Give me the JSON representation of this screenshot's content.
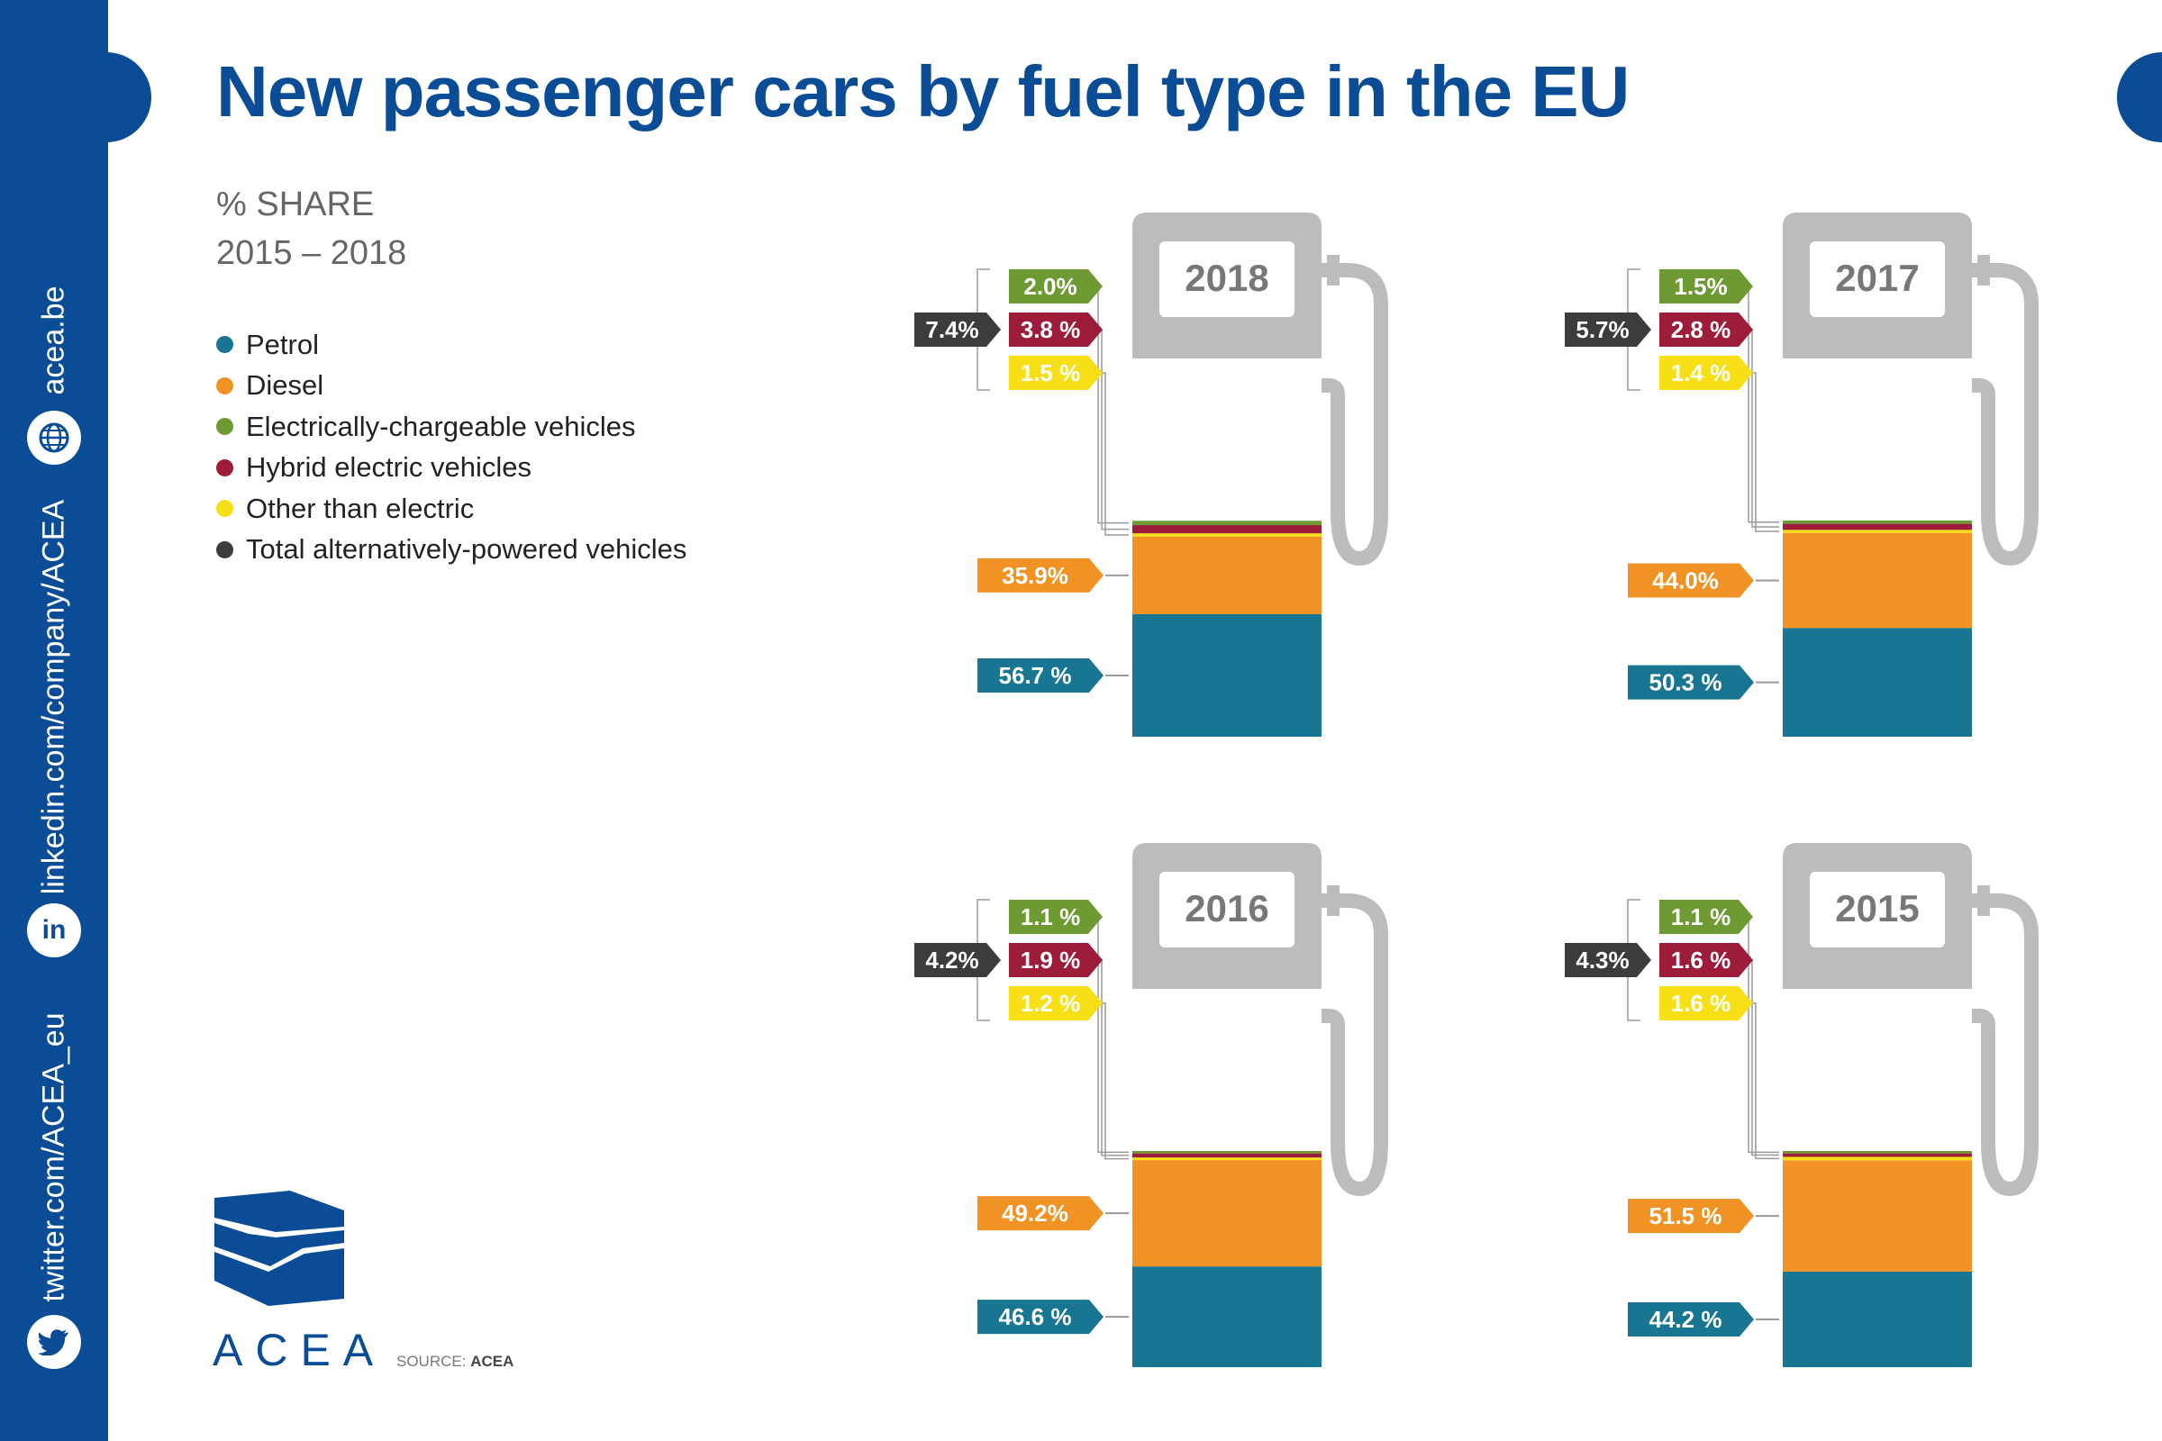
{
  "title": "New passenger cars by fuel type in the EU",
  "subtitle_line1": "% SHARE",
  "subtitle_line2": "2015 – 2018",
  "sidebar": {
    "website": "acea.be",
    "linkedin": "linkedin.com/company/ACEA",
    "twitter": "twitter.com/ACEA_eu",
    "linkedin_icon_text": "in"
  },
  "logo_text": "ACEA",
  "source_label": "SOURCE:",
  "source_value": "ACEA",
  "colors": {
    "petrol": "#187692",
    "diesel": "#f09324",
    "electric": "#6e9a33",
    "hybrid": "#9c1c3a",
    "other": "#f6df14",
    "total": "#3c3c3c",
    "brand": "#0a4d96",
    "pump": "#bcbcbc"
  },
  "chart_data": {
    "type": "bar",
    "stacked": true,
    "unit": "%",
    "legend": [
      {
        "key": "petrol",
        "label": "Petrol"
      },
      {
        "key": "diesel",
        "label": "Diesel"
      },
      {
        "key": "electric",
        "label": "Electrically-chargeable vehicles"
      },
      {
        "key": "hybrid",
        "label": "Hybrid electric vehicles"
      },
      {
        "key": "other",
        "label": "Other than electric"
      },
      {
        "key": "total",
        "label": "Total alternatively-powered vehicles"
      }
    ],
    "charts": [
      {
        "year": "2018",
        "petrol": 56.7,
        "diesel": 35.9,
        "electric": 2.0,
        "hybrid": 3.8,
        "other": 1.5,
        "total": 7.4,
        "labels": {
          "petrol": "56.7 %",
          "diesel": "35.9%",
          "electric": "2.0%",
          "hybrid": "3.8 %",
          "other": "1.5 %",
          "total": "7.4%"
        }
      },
      {
        "year": "2017",
        "petrol": 50.3,
        "diesel": 44.0,
        "electric": 1.5,
        "hybrid": 2.8,
        "other": 1.4,
        "total": 5.7,
        "labels": {
          "petrol": "50.3 %",
          "diesel": "44.0%",
          "electric": "1.5%",
          "hybrid": "2.8 %",
          "other": "1.4 %",
          "total": "5.7%"
        }
      },
      {
        "year": "2016",
        "petrol": 46.6,
        "diesel": 49.2,
        "electric": 1.1,
        "hybrid": 1.9,
        "other": 1.2,
        "total": 4.2,
        "labels": {
          "petrol": "46.6 %",
          "diesel": "49.2%",
          "electric": "1.1 %",
          "hybrid": "1.9 %",
          "other": "1.2 %",
          "total": "4.2%"
        }
      },
      {
        "year": "2015",
        "petrol": 44.2,
        "diesel": 51.5,
        "electric": 1.1,
        "hybrid": 1.6,
        "other": 1.6,
        "total": 4.3,
        "labels": {
          "petrol": "44.2 %",
          "diesel": "51.5 %",
          "electric": "1.1 %",
          "hybrid": "1.6 %",
          "other": "1.6 %",
          "total": "4.3%"
        }
      }
    ]
  }
}
